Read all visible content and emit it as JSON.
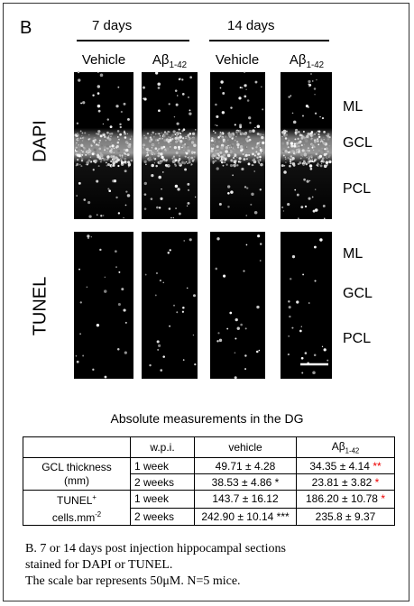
{
  "panel_label": "B",
  "time_headers": [
    "7 days",
    "14 days"
  ],
  "columns": [
    {
      "text": "Vehicle"
    },
    {
      "base": "Aβ",
      "sub": "1-42"
    },
    {
      "text": "Vehicle"
    },
    {
      "base": "Aβ",
      "sub": "1-42"
    }
  ],
  "stains": [
    "DAPI",
    "TUNEL"
  ],
  "regions": [
    [
      "ML",
      "GCL",
      "PCL"
    ],
    [
      "ML",
      "GCL",
      "PCL"
    ]
  ],
  "table": {
    "title": "Absolute measurements in the DG",
    "header": {
      "wpi": "w.p.i.",
      "vehicle": "vehicle",
      "abeta": {
        "base": "Aβ",
        "sub": "1-42"
      }
    },
    "groups": [
      {
        "label_lines": [
          {
            "text": "GCL thickness"
          },
          {
            "text": "(mm)"
          }
        ],
        "rows": [
          {
            "wpi": "1 week",
            "vehicle": {
              "text": "49.71 ± 4.28"
            },
            "abeta": {
              "text": "34.35 ± 4.14",
              "mark": "**"
            }
          },
          {
            "wpi": "2 weeks",
            "vehicle": {
              "text": "38.53 ± 4.86 *"
            },
            "abeta": {
              "text": "23.81 ± 3.82",
              "mark": "*"
            }
          }
        ]
      },
      {
        "label_lines": [
          {
            "text": "TUNEL",
            "sup": "+"
          },
          {
            "text": "cells.mm",
            "sup": "-2"
          }
        ],
        "rows": [
          {
            "wpi": "1 week",
            "vehicle": {
              "text": "143.7 ± 16.12"
            },
            "abeta": {
              "text": "186.20 ± 10.78",
              "mark": "*"
            }
          },
          {
            "wpi": "2 weeks",
            "vehicle": {
              "text": "242.90 ± 10.14 ***"
            },
            "abeta": {
              "text": "235.8 ± 9.37"
            }
          }
        ]
      }
    ]
  },
  "caption": [
    "B. 7 or 14 days post injection hippocampal sections",
    "stained for DAPI or TUNEL.",
    "The scale bar represents 50μM. N=5 mice."
  ]
}
